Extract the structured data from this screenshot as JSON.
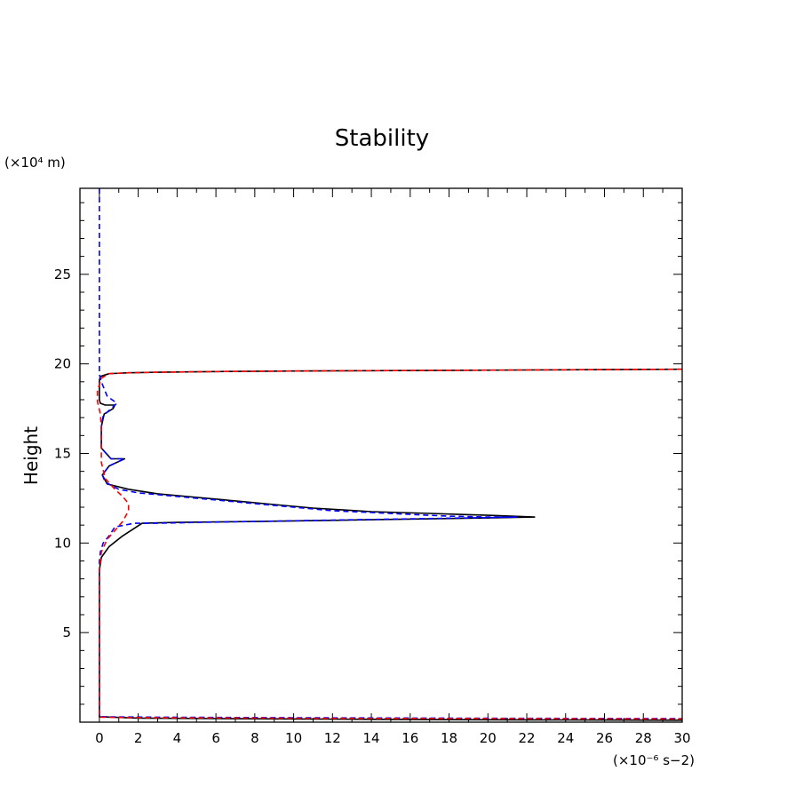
{
  "chart_data": {
    "type": "line",
    "title": "Stability",
    "xlabel": "",
    "ylabel": "Height",
    "x_unit": "(×10⁻⁶ s−2)",
    "y_unit": "(×10⁴ m)",
    "xlim": [
      -1,
      30
    ],
    "ylim": [
      0,
      29.8
    ],
    "x_ticks": [
      0,
      2,
      4,
      6,
      8,
      10,
      12,
      14,
      16,
      18,
      20,
      22,
      24,
      26,
      28,
      30
    ],
    "y_ticks": [
      5,
      10,
      15,
      20,
      25
    ],
    "grid": false,
    "series": [
      {
        "name": "black-solid",
        "color": "#000000",
        "style": "solid",
        "x": [
          30,
          26,
          22,
          18,
          14,
          10,
          6,
          3,
          1.5,
          0.5,
          0.05,
          0,
          0,
          0,
          0,
          0.05,
          0.3,
          0.8,
          0.7,
          0.25,
          0.1,
          0.1,
          0.6,
          1.3,
          0.5,
          0.15,
          0.4,
          1.5,
          3,
          5,
          7,
          9,
          11,
          14,
          17,
          20,
          22.4,
          22.4,
          20,
          14,
          8,
          4,
          2.2,
          2.2,
          1.2,
          0.5,
          0.1,
          0,
          0,
          0,
          0,
          2,
          6,
          10,
          14,
          18,
          22,
          26,
          30
        ],
        "y": [
          19.7,
          19.68,
          19.66,
          19.64,
          19.62,
          19.6,
          19.57,
          19.53,
          19.5,
          19.45,
          19.3,
          19.1,
          18.8,
          18.4,
          18.0,
          17.8,
          17.7,
          17.7,
          17.5,
          17.2,
          16.5,
          15.3,
          14.7,
          14.7,
          14.3,
          13.8,
          13.3,
          13.0,
          12.75,
          12.55,
          12.35,
          12.15,
          11.95,
          11.75,
          11.65,
          11.55,
          11.45,
          11.45,
          11.4,
          11.3,
          11.2,
          11.15,
          11.1,
          11.1,
          10.4,
          9.8,
          9.2,
          8.5,
          6,
          2,
          0.3,
          0.23,
          0.2,
          0.18,
          0.16,
          0.14,
          0.13,
          0.12,
          0.11
        ]
      },
      {
        "name": "blue-dashed",
        "color": "#0000ff",
        "style": "dashed",
        "x": [
          0,
          0,
          0,
          0,
          0,
          0.1,
          0.4,
          0.9,
          0.6,
          0.2,
          0.1,
          0.1,
          0.6,
          1.3,
          0.5,
          0.15,
          0.3,
          1,
          2,
          4,
          6,
          8,
          10,
          12,
          14,
          16,
          18,
          20,
          21.5,
          20,
          16,
          12,
          8,
          5,
          3,
          1.8,
          0.8,
          0.5,
          0.2,
          0.05,
          0,
          0,
          0,
          0,
          3,
          10,
          20,
          30
        ],
        "y": [
          29.8,
          25,
          22,
          20,
          19.4,
          19,
          18.2,
          17.8,
          17.5,
          17.1,
          16.5,
          15.3,
          14.7,
          14.7,
          14.3,
          13.8,
          13.4,
          13.0,
          12.8,
          12.6,
          12.4,
          12.2,
          12.0,
          11.8,
          11.7,
          11.6,
          11.5,
          11.45,
          11.45,
          11.42,
          11.35,
          11.28,
          11.2,
          11.15,
          11.1,
          11.1,
          10.9,
          10.4,
          10.0,
          9.5,
          9.0,
          6,
          1,
          0.3,
          0.28,
          0.25,
          0.22,
          0.2
        ]
      },
      {
        "name": "red-dashed",
        "color": "#ff0000",
        "style": "dashed",
        "x": [
          30,
          26,
          22,
          18,
          14,
          10,
          6,
          3,
          1.5,
          0.5,
          0.1,
          -0.1,
          -0.1,
          0.05,
          0.1,
          0.1,
          0.3,
          0.8,
          1.2,
          1.5,
          1.5,
          1.2,
          0.8,
          0.4,
          0.1,
          0,
          0,
          0,
          0,
          3,
          10,
          20,
          30
        ],
        "y": [
          19.7,
          19.68,
          19.66,
          19.64,
          19.62,
          19.6,
          19.57,
          19.53,
          19.5,
          19.45,
          19.2,
          18.5,
          17.9,
          17.2,
          16.5,
          14.5,
          13.6,
          13.0,
          12.6,
          12.2,
          11.8,
          11.2,
          10.7,
          10.2,
          9.5,
          8.5,
          6,
          1,
          0.28,
          0.25,
          0.22,
          0.2,
          0.18
        ]
      }
    ]
  }
}
